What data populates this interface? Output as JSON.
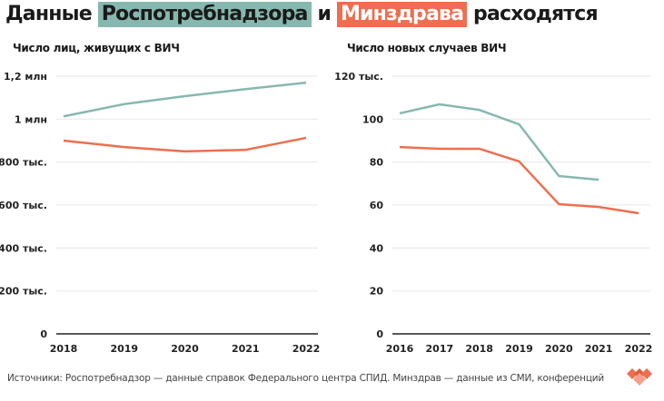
{
  "title": {
    "part1": "Данные",
    "part2": "Роспотребнадзора",
    "part3": "и",
    "part4": "Минздрава",
    "part5": "расходятся"
  },
  "colors": {
    "rospotreb": "#86b8b0",
    "minzdrav": "#ee6e4f",
    "grid": "#eeeeee"
  },
  "source": "Источники: Роспотребнадзор — данные справок Федерального центра СПИД. Минздрав — данные из СМИ, конференций",
  "chart_data": [
    {
      "type": "line",
      "title": "Число лиц, живущих с ВИЧ",
      "x": [
        "2018",
        "2019",
        "2020",
        "2021",
        "2022"
      ],
      "ylim": [
        0,
        1200000
      ],
      "yticks": [
        {
          "v": 0,
          "label": "0"
        },
        {
          "v": 200000,
          "label": "200 тыс."
        },
        {
          "v": 400000,
          "label": "400 тыс."
        },
        {
          "v": 600000,
          "label": "600 тыс."
        },
        {
          "v": 800000,
          "label": "800 тыс."
        },
        {
          "v": 1000000,
          "label": "1 млн"
        },
        {
          "v": 1200000,
          "label": "1,2 млн"
        }
      ],
      "series": [
        {
          "name": "Роспотребнадзор",
          "color": "#86b8b0",
          "values": [
            1013000,
            1070000,
            1107000,
            1140000,
            1170000
          ]
        },
        {
          "name": "Минздрав",
          "color": "#ee6e4f",
          "values": [
            900000,
            870000,
            850000,
            857000,
            913000
          ]
        }
      ]
    },
    {
      "type": "line",
      "title": "Число новых случаев ВИЧ",
      "x": [
        "2016",
        "2017",
        "2018",
        "2019",
        "2020",
        "2021",
        "2022"
      ],
      "ylim": [
        0,
        120
      ],
      "yticks": [
        {
          "v": 0,
          "label": "0"
        },
        {
          "v": 20,
          "label": "20"
        },
        {
          "v": 40,
          "label": "40"
        },
        {
          "v": 60,
          "label": "60"
        },
        {
          "v": 80,
          "label": "80"
        },
        {
          "v": 100,
          "label": "100"
        },
        {
          "v": 120,
          "label": "120 тыс."
        }
      ],
      "series": [
        {
          "name": "Роспотребнадзор",
          "color": "#86b8b0",
          "values": [
            102.7,
            106.9,
            104.3,
            97.6,
            73.5,
            71.8,
            null
          ]
        },
        {
          "name": "Минздрав",
          "color": "#ee6e4f",
          "values": [
            87,
            86.2,
            86.2,
            80.3,
            60.4,
            59.1,
            56.2
          ]
        }
      ]
    }
  ]
}
